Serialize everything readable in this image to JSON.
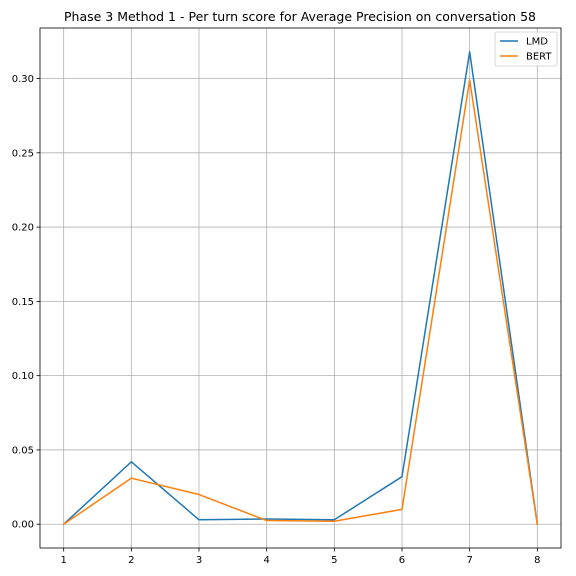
{
  "chart_data": {
    "type": "line",
    "title": "Phase 3 Method 1 - Per turn score for Average Precision on conversation 58",
    "xlabel": "",
    "ylabel": "",
    "x": [
      1,
      2,
      3,
      4,
      5,
      6,
      7,
      8
    ],
    "xticks": [
      "1",
      "2",
      "3",
      "4",
      "5",
      "6",
      "7",
      "8"
    ],
    "yticks": [
      "0.00",
      "0.05",
      "0.10",
      "0.15",
      "0.20",
      "0.25",
      "0.30"
    ],
    "xlim": [
      0.65,
      8.35
    ],
    "ylim": [
      -0.016,
      0.334
    ],
    "grid": true,
    "legend_position": "top-right",
    "series": [
      {
        "name": "LMD",
        "color": "#1f77b4",
        "values": [
          0.0,
          0.042,
          0.003,
          0.0035,
          0.003,
          0.032,
          0.318,
          0.0
        ]
      },
      {
        "name": "BERT",
        "color": "#ff7f0e",
        "values": [
          0.0,
          0.031,
          0.02,
          0.0025,
          0.002,
          0.01,
          0.299,
          0.0
        ]
      }
    ]
  }
}
